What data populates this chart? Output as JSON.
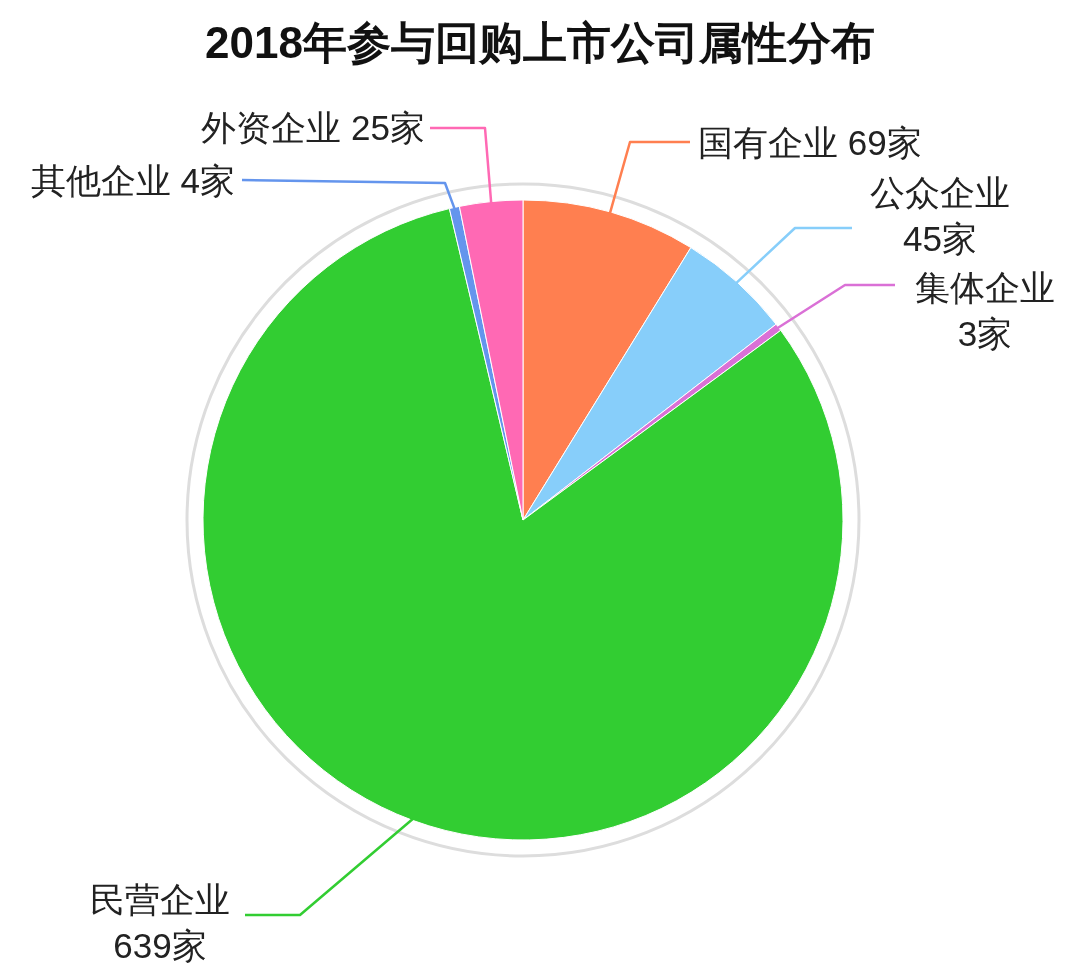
{
  "chart_data": {
    "type": "pie",
    "title": "2018年参与回购上市公司属性分布",
    "categories": [
      "国有企业",
      "公众企业",
      "集体企业",
      "民营企业",
      "其他企业",
      "外资企业"
    ],
    "values": [
      69,
      45,
      3,
      639,
      4,
      25
    ],
    "colors": [
      "#ff7f50",
      "#87cefa",
      "#da70d6",
      "#32cd32",
      "#6495ed",
      "#ff69b4"
    ],
    "value_labels": [
      "69家",
      "45家",
      "3家",
      "639家",
      "4家",
      "25家"
    ]
  }
}
